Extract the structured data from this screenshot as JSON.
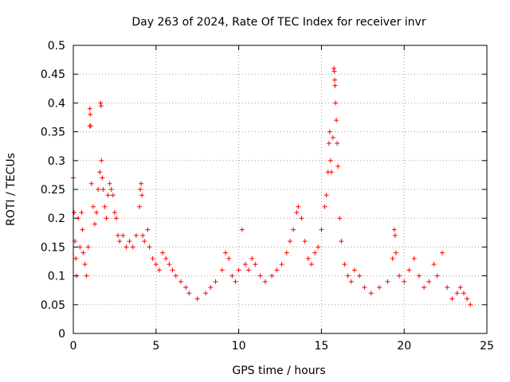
{
  "chart_data": {
    "type": "scatter",
    "title": "Day 263 of 2024, Rate Of TEC Index for receiver invr",
    "xlabel": "GPS time / hours",
    "ylabel": "ROTI / TECUs",
    "xlim": [
      0,
      25
    ],
    "ylim": [
      0,
      0.5
    ],
    "xticks": [
      0,
      5,
      10,
      15,
      20,
      25
    ],
    "xtick_labels": [
      "0",
      "5",
      "10",
      "15",
      "20",
      "25"
    ],
    "yticks": [
      0,
      0.05,
      0.1,
      0.15,
      0.2,
      0.25,
      0.3,
      0.35,
      0.4,
      0.45,
      0.5
    ],
    "ytick_labels": [
      "0",
      "0.05",
      "0.1",
      "0.15",
      "0.2",
      "0.25",
      "0.3",
      "0.35",
      "0.4",
      "0.45",
      "0.5"
    ],
    "grid": true,
    "marker": "+",
    "color": "#ff0000",
    "series": [
      {
        "name": "ROTI",
        "points": [
          [
            0.0,
            0.27
          ],
          [
            0.05,
            0.21
          ],
          [
            0.1,
            0.16
          ],
          [
            0.15,
            0.13
          ],
          [
            0.2,
            0.1
          ],
          [
            0.3,
            0.2
          ],
          [
            0.4,
            0.15
          ],
          [
            0.5,
            0.21
          ],
          [
            0.55,
            0.18
          ],
          [
            0.6,
            0.14
          ],
          [
            0.7,
            0.12
          ],
          [
            0.8,
            0.1
          ],
          [
            0.9,
            0.15
          ],
          [
            1.0,
            0.39
          ],
          [
            1.02,
            0.38
          ],
          [
            1.0,
            0.36
          ],
          [
            1.05,
            0.36
          ],
          [
            1.1,
            0.26
          ],
          [
            1.2,
            0.22
          ],
          [
            1.3,
            0.19
          ],
          [
            1.4,
            0.21
          ],
          [
            1.5,
            0.25
          ],
          [
            1.6,
            0.28
          ],
          [
            1.65,
            0.4
          ],
          [
            1.68,
            0.395
          ],
          [
            1.7,
            0.3
          ],
          [
            1.75,
            0.27
          ],
          [
            1.8,
            0.25
          ],
          [
            1.9,
            0.22
          ],
          [
            2.0,
            0.2
          ],
          [
            2.1,
            0.24
          ],
          [
            2.2,
            0.26
          ],
          [
            2.3,
            0.25
          ],
          [
            2.4,
            0.24
          ],
          [
            2.5,
            0.21
          ],
          [
            2.6,
            0.2
          ],
          [
            2.7,
            0.17
          ],
          [
            2.8,
            0.16
          ],
          [
            3.0,
            0.17
          ],
          [
            3.2,
            0.15
          ],
          [
            3.4,
            0.16
          ],
          [
            3.6,
            0.15
          ],
          [
            3.8,
            0.17
          ],
          [
            4.0,
            0.22
          ],
          [
            4.05,
            0.25
          ],
          [
            4.1,
            0.26
          ],
          [
            4.15,
            0.24
          ],
          [
            4.2,
            0.17
          ],
          [
            4.3,
            0.16
          ],
          [
            4.5,
            0.18
          ],
          [
            4.6,
            0.15
          ],
          [
            4.8,
            0.13
          ],
          [
            5.0,
            0.12
          ],
          [
            5.2,
            0.11
          ],
          [
            5.4,
            0.14
          ],
          [
            5.6,
            0.13
          ],
          [
            5.8,
            0.12
          ],
          [
            6.0,
            0.11
          ],
          [
            6.2,
            0.1
          ],
          [
            6.5,
            0.09
          ],
          [
            6.8,
            0.08
          ],
          [
            7.0,
            0.07
          ],
          [
            7.5,
            0.06
          ],
          [
            8.0,
            0.07
          ],
          [
            8.3,
            0.08
          ],
          [
            8.6,
            0.09
          ],
          [
            9.0,
            0.11
          ],
          [
            9.2,
            0.14
          ],
          [
            9.4,
            0.13
          ],
          [
            9.6,
            0.1
          ],
          [
            9.8,
            0.09
          ],
          [
            10.0,
            0.11
          ],
          [
            10.2,
            0.18
          ],
          [
            10.4,
            0.12
          ],
          [
            10.6,
            0.11
          ],
          [
            10.8,
            0.13
          ],
          [
            11.0,
            0.12
          ],
          [
            11.3,
            0.1
          ],
          [
            11.6,
            0.09
          ],
          [
            12.0,
            0.1
          ],
          [
            12.3,
            0.11
          ],
          [
            12.6,
            0.12
          ],
          [
            12.9,
            0.14
          ],
          [
            13.1,
            0.16
          ],
          [
            13.3,
            0.18
          ],
          [
            13.5,
            0.21
          ],
          [
            13.6,
            0.22
          ],
          [
            13.8,
            0.2
          ],
          [
            14.0,
            0.16
          ],
          [
            14.2,
            0.13
          ],
          [
            14.4,
            0.12
          ],
          [
            14.6,
            0.14
          ],
          [
            14.8,
            0.15
          ],
          [
            15.0,
            0.18
          ],
          [
            15.2,
            0.22
          ],
          [
            15.3,
            0.24
          ],
          [
            15.4,
            0.28
          ],
          [
            15.45,
            0.33
          ],
          [
            15.5,
            0.35
          ],
          [
            15.55,
            0.3
          ],
          [
            15.6,
            0.28
          ],
          [
            15.7,
            0.34
          ],
          [
            15.75,
            0.46
          ],
          [
            15.78,
            0.455
          ],
          [
            15.8,
            0.44
          ],
          [
            15.82,
            0.43
          ],
          [
            15.85,
            0.4
          ],
          [
            15.9,
            0.37
          ],
          [
            15.95,
            0.33
          ],
          [
            16.0,
            0.29
          ],
          [
            16.1,
            0.2
          ],
          [
            16.2,
            0.16
          ],
          [
            16.4,
            0.12
          ],
          [
            16.6,
            0.1
          ],
          [
            16.8,
            0.09
          ],
          [
            17.0,
            0.11
          ],
          [
            17.3,
            0.1
          ],
          [
            17.6,
            0.08
          ],
          [
            18.0,
            0.07
          ],
          [
            18.5,
            0.08
          ],
          [
            19.0,
            0.09
          ],
          [
            19.3,
            0.13
          ],
          [
            19.4,
            0.18
          ],
          [
            19.45,
            0.17
          ],
          [
            19.5,
            0.14
          ],
          [
            19.7,
            0.1
          ],
          [
            20.0,
            0.09
          ],
          [
            20.3,
            0.11
          ],
          [
            20.6,
            0.13
          ],
          [
            20.9,
            0.1
          ],
          [
            21.2,
            0.08
          ],
          [
            21.5,
            0.09
          ],
          [
            21.8,
            0.12
          ],
          [
            22.0,
            0.1
          ],
          [
            22.3,
            0.14
          ],
          [
            22.6,
            0.08
          ],
          [
            22.9,
            0.06
          ],
          [
            23.2,
            0.07
          ],
          [
            23.4,
            0.08
          ],
          [
            23.6,
            0.07
          ],
          [
            23.8,
            0.06
          ],
          [
            24.0,
            0.05
          ]
        ]
      }
    ]
  }
}
